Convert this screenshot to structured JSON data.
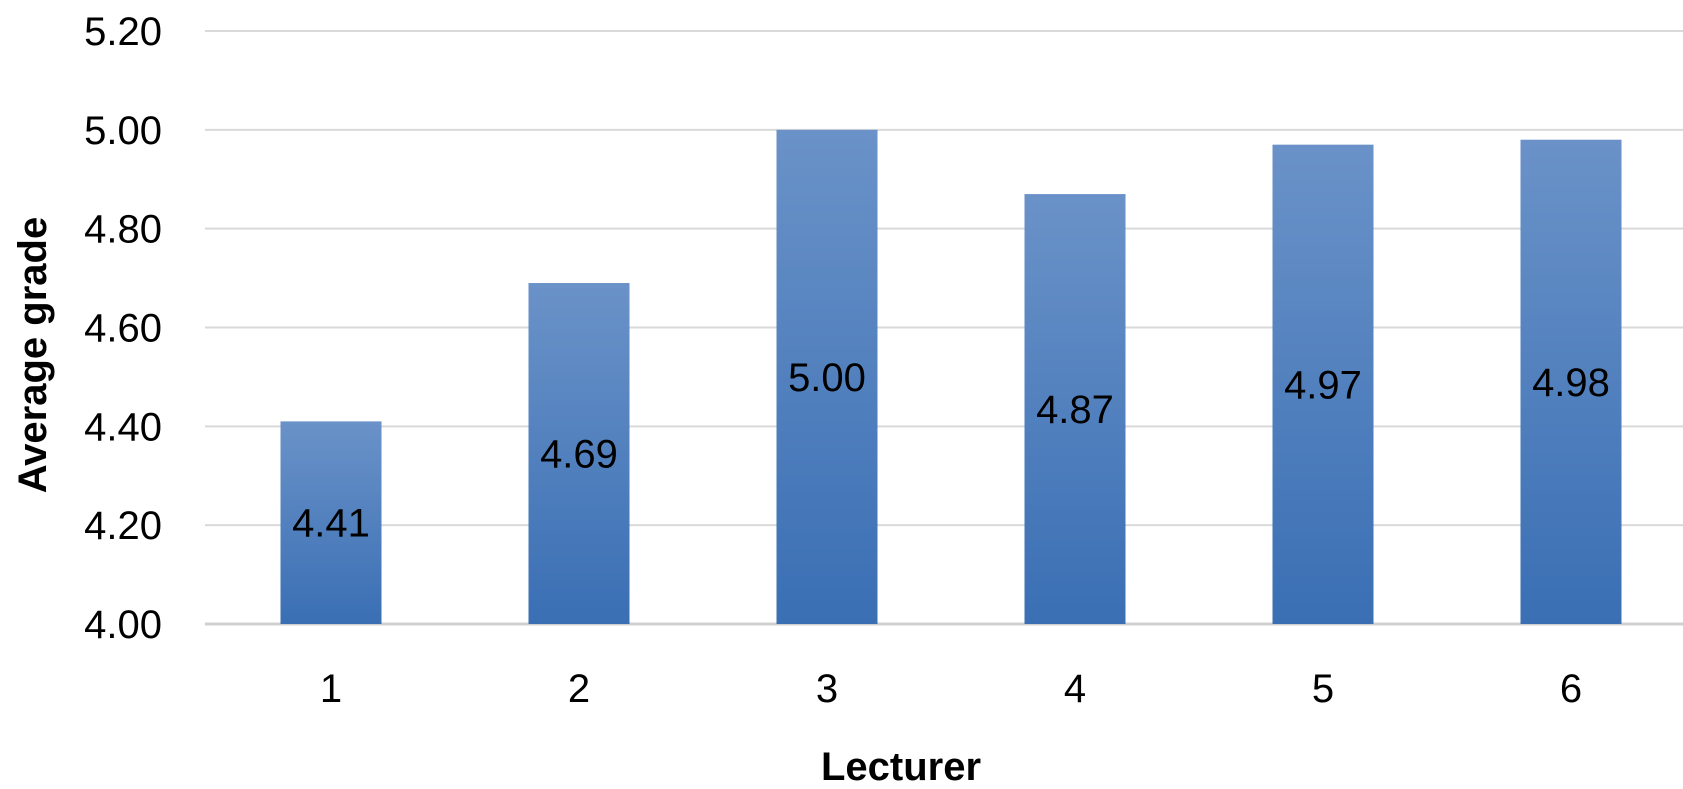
{
  "chart_data": {
    "type": "bar",
    "title": "",
    "xlabel": "Lecturer",
    "ylabel": "Average grade",
    "categories": [
      "1",
      "2",
      "3",
      "4",
      "5",
      "6"
    ],
    "values": [
      4.41,
      4.69,
      5.0,
      4.87,
      4.97,
      4.98
    ],
    "value_labels": [
      "4.41",
      "4.69",
      "5.00",
      "4.87",
      "4.97",
      "4.98"
    ],
    "ylim": [
      4.0,
      5.2
    ],
    "y_ticks": [
      4.0,
      4.2,
      4.4,
      4.6,
      4.8,
      5.0,
      5.2
    ],
    "y_tick_labels": [
      "4.00",
      "4.20",
      "4.40",
      "4.60",
      "4.80",
      "5.00",
      "5.20"
    ],
    "grid": true,
    "legend": "none",
    "colors": {
      "bar_top": "#6a92c8",
      "bar_bottom": "#3a6fb4",
      "grid": "#d9d9d9",
      "axis": "#d0d0d0"
    }
  }
}
